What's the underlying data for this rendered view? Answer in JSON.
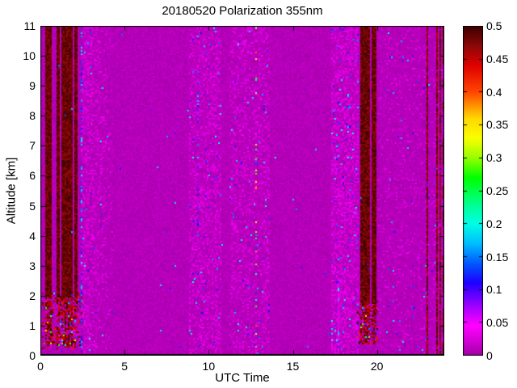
{
  "chart_data": {
    "type": "heatmap",
    "title": "20180520 Polarization 355nm",
    "xlabel": "UTC Time",
    "ylabel": "Altitude [km]",
    "xlim": [
      0,
      24
    ],
    "ylim": [
      0,
      11
    ],
    "grid": false,
    "x_ticks": [
      {
        "v": 0,
        "label": "0"
      },
      {
        "v": 5,
        "label": "5"
      },
      {
        "v": 10,
        "label": "10"
      },
      {
        "v": 15,
        "label": "15"
      },
      {
        "v": 20,
        "label": "20"
      }
    ],
    "y_ticks": [
      {
        "v": 0,
        "label": "0"
      },
      {
        "v": 1,
        "label": "1"
      },
      {
        "v": 2,
        "label": "2"
      },
      {
        "v": 3,
        "label": "3"
      },
      {
        "v": 4,
        "label": "4"
      },
      {
        "v": 5,
        "label": "5"
      },
      {
        "v": 6,
        "label": "6"
      },
      {
        "v": 7,
        "label": "7"
      },
      {
        "v": 8,
        "label": "8"
      },
      {
        "v": 9,
        "label": "9"
      },
      {
        "v": 10,
        "label": "10"
      },
      {
        "v": 11,
        "label": "11"
      }
    ],
    "colorbar": {
      "min": 0,
      "max": 0.5,
      "position": "right",
      "ticks": [
        {
          "v": 0,
          "label": "0"
        },
        {
          "v": 0.05,
          "label": "0.05"
        },
        {
          "v": 0.1,
          "label": "0.1"
        },
        {
          "v": 0.15,
          "label": "0.15"
        },
        {
          "v": 0.2,
          "label": "0.2"
        },
        {
          "v": 0.25,
          "label": "0.25"
        },
        {
          "v": 0.3,
          "label": "0.3"
        },
        {
          "v": 0.35,
          "label": "0.35"
        },
        {
          "v": 0.4,
          "label": "0.4"
        },
        {
          "v": 0.45,
          "label": "0.45"
        },
        {
          "v": 0.5,
          "label": "0.5"
        }
      ]
    },
    "colormap_stops": [
      [
        0.0,
        [
          162,
          0,
          168
        ]
      ],
      [
        0.02,
        [
          208,
          0,
          210
        ]
      ],
      [
        0.045,
        [
          255,
          0,
          255
        ]
      ],
      [
        0.06,
        [
          210,
          0,
          255
        ]
      ],
      [
        0.085,
        [
          120,
          0,
          255
        ]
      ],
      [
        0.11,
        [
          30,
          0,
          255
        ]
      ],
      [
        0.14,
        [
          0,
          90,
          255
        ]
      ],
      [
        0.17,
        [
          0,
          190,
          255
        ]
      ],
      [
        0.2,
        [
          0,
          255,
          230
        ]
      ],
      [
        0.23,
        [
          0,
          255,
          140
        ]
      ],
      [
        0.27,
        [
          0,
          255,
          0
        ]
      ],
      [
        0.3,
        [
          150,
          255,
          0
        ]
      ],
      [
        0.33,
        [
          250,
          255,
          0
        ]
      ],
      [
        0.36,
        [
          255,
          215,
          0
        ]
      ],
      [
        0.4,
        [
          255,
          70,
          0
        ]
      ],
      [
        0.44,
        [
          225,
          0,
          0
        ]
      ],
      [
        0.47,
        [
          140,
          8,
          8
        ]
      ],
      [
        0.5,
        [
          60,
          0,
          0
        ]
      ]
    ],
    "features": {
      "seed": 20180520,
      "background": {
        "base": 0.002,
        "noise": 0.012
      },
      "noise_bands": [
        {
          "t": [
            2.45,
            4.4
          ],
          "alt": [
            0,
            11
          ],
          "light_p": 0.5,
          "color_p": 0.01,
          "red_p": 0,
          "fade": true
        },
        {
          "t": [
            8.8,
            10.7
          ],
          "alt": [
            0,
            11
          ],
          "light_p": 0.38,
          "color_p": 0.02,
          "red_p": 0,
          "fade": false
        },
        {
          "t": [
            11.2,
            13.5
          ],
          "alt": [
            0,
            11
          ],
          "light_p": 0.3,
          "color_p": 0.012,
          "red_p": 0,
          "fade": false
        },
        {
          "t": [
            17.3,
            18.85
          ],
          "alt": [
            0,
            11
          ],
          "light_p": 0.55,
          "color_p": 0.035,
          "red_p": 0,
          "fade": false
        },
        {
          "t": [
            20.1,
            23.9
          ],
          "alt": [
            0,
            11
          ],
          "light_p": 0.1,
          "color_p": 0.003,
          "red_p": 0,
          "fade": false
        },
        {
          "t": [
            0.1,
            2.4
          ],
          "alt": [
            0.2,
            2.1
          ],
          "light_p": 0.15,
          "color_p": 0.02,
          "red_p": 0.25,
          "fade": false
        },
        {
          "t": [
            18.85,
            19.95
          ],
          "alt": [
            0.3,
            1.9
          ],
          "light_p": 0.1,
          "color_p": 0.03,
          "red_p": 0.2,
          "fade": false
        }
      ],
      "speckle_columns": [
        {
          "t": 2.42,
          "alt": [
            0,
            11
          ],
          "p": 0.5,
          "vmin": 0.03,
          "vspan": 0.17
        },
        {
          "t": 9.3,
          "alt": [
            4,
            9.5
          ],
          "p": 0.18,
          "vmin": 0.06,
          "vspan": 0.12
        },
        {
          "t": 12.72,
          "alt": [
            0,
            11
          ],
          "p": 0.12,
          "vmin": 0.12,
          "vspan": 0.3
        },
        {
          "t": 17.7,
          "alt": [
            0,
            2.6
          ],
          "p": 0.9,
          "vmin": 0.025,
          "vspan": 0.035
        },
        {
          "t": 17.7,
          "alt": [
            0,
            2.6
          ],
          "p": 0.22,
          "vmin": 0.08,
          "vspan": 0.16
        },
        {
          "t": 20.9,
          "alt": [
            0,
            3
          ],
          "p": 0.12,
          "vmin": 0.08,
          "vspan": 0.12
        },
        {
          "t": 22.1,
          "alt": [
            0,
            3
          ],
          "p": 0.12,
          "vmin": 0.08,
          "vspan": 0.12
        },
        {
          "t": 22.8,
          "alt": [
            0,
            3
          ],
          "p": 0.1,
          "vmin": 0.08,
          "vspan": 0.12
        },
        {
          "t": 23.4,
          "alt": [
            2,
            9
          ],
          "p": 0.08,
          "vmin": 0.08,
          "vspan": 0.12
        }
      ],
      "stripe_clusters": [
        {
          "t": [
            0.1,
            2.35
          ],
          "alt": [
            0.3,
            11
          ],
          "count": 15,
          "solid_above": 2.0
        },
        {
          "t": [
            18.85,
            19.95
          ],
          "alt": [
            0.4,
            11
          ],
          "count": 8,
          "solid_above": 1.8
        }
      ],
      "thin_lines": [
        {
          "t": 22.95
        },
        {
          "t": 23.5
        },
        {
          "t": 23.75
        }
      ],
      "edge_dashes": {
        "p": 0.55
      },
      "scatter": {
        "p": 0.0015,
        "vmin": 0.08,
        "vspan": 0.12
      }
    }
  }
}
